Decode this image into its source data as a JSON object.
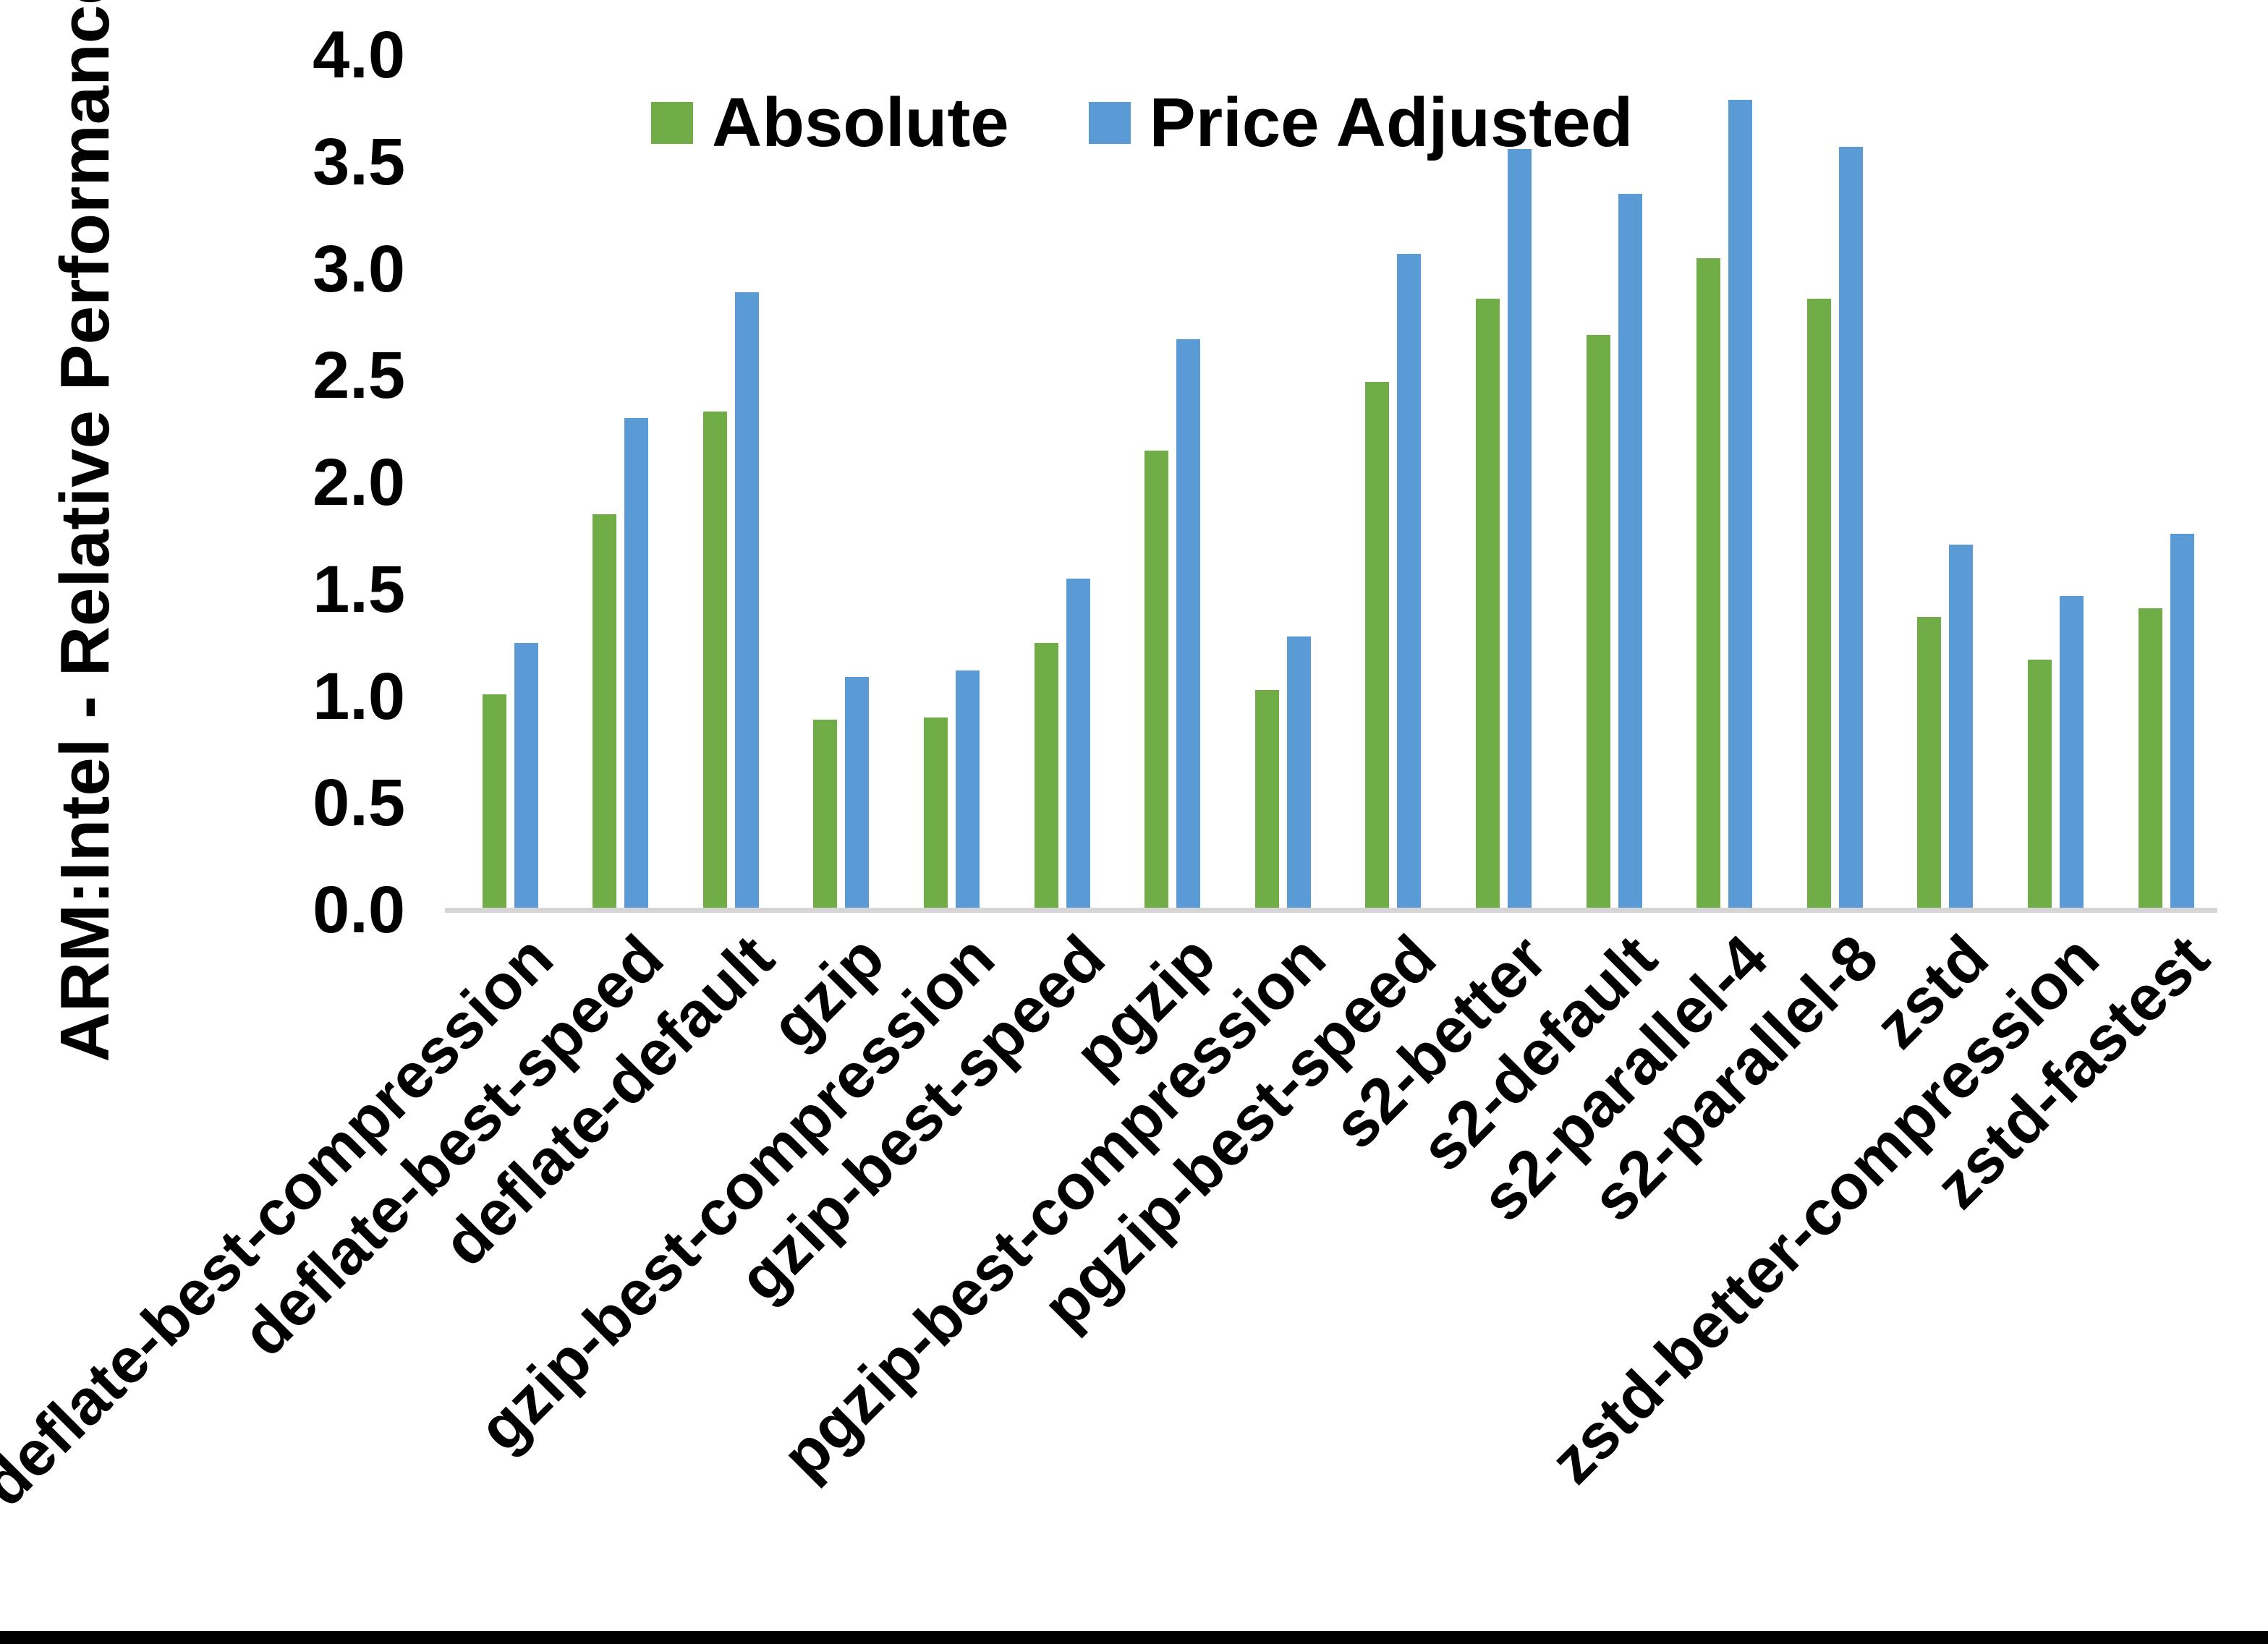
{
  "chart_data": {
    "type": "bar",
    "title": "",
    "xlabel": "",
    "ylabel": "ARM:Intel - Relative Performance",
    "ylim": [
      0.0,
      4.0
    ],
    "ytick_step": 0.5,
    "ytick_labels": [
      "0.0",
      "0.5",
      "1.0",
      "1.5",
      "2.0",
      "2.5",
      "3.0",
      "3.5",
      "4.0"
    ],
    "grid": false,
    "legend_position": "top-center",
    "axis_line_color": "#d6d6d6",
    "categories": [
      "deflate-best-compression",
      "deflate-best-speed",
      "deflate-default",
      "gzip",
      "gzip-best-compression",
      "gzip-best-speed",
      "pgzip",
      "pgzip-best-compression",
      "pgzip-best-speed",
      "s2-better",
      "s2-default",
      "s2-parallel-4",
      "s2-parallel-8",
      "zstd",
      "zstd-better-compression",
      "zstd-fastest"
    ],
    "series": [
      {
        "name": "Absolute",
        "color": "#70AD47",
        "values": [
          1.01,
          1.85,
          2.33,
          0.89,
          0.9,
          1.25,
          2.15,
          1.03,
          2.47,
          2.86,
          2.69,
          3.05,
          2.86,
          1.37,
          1.17,
          1.41
        ]
      },
      {
        "name": "Price Adjusted",
        "color": "#5B9BD5",
        "values": [
          1.25,
          2.3,
          2.89,
          1.09,
          1.12,
          1.55,
          2.67,
          1.28,
          3.07,
          3.56,
          3.35,
          3.79,
          3.57,
          1.71,
          1.47,
          1.76
        ]
      }
    ]
  },
  "window": {
    "bottom_border_color": "#000000"
  }
}
